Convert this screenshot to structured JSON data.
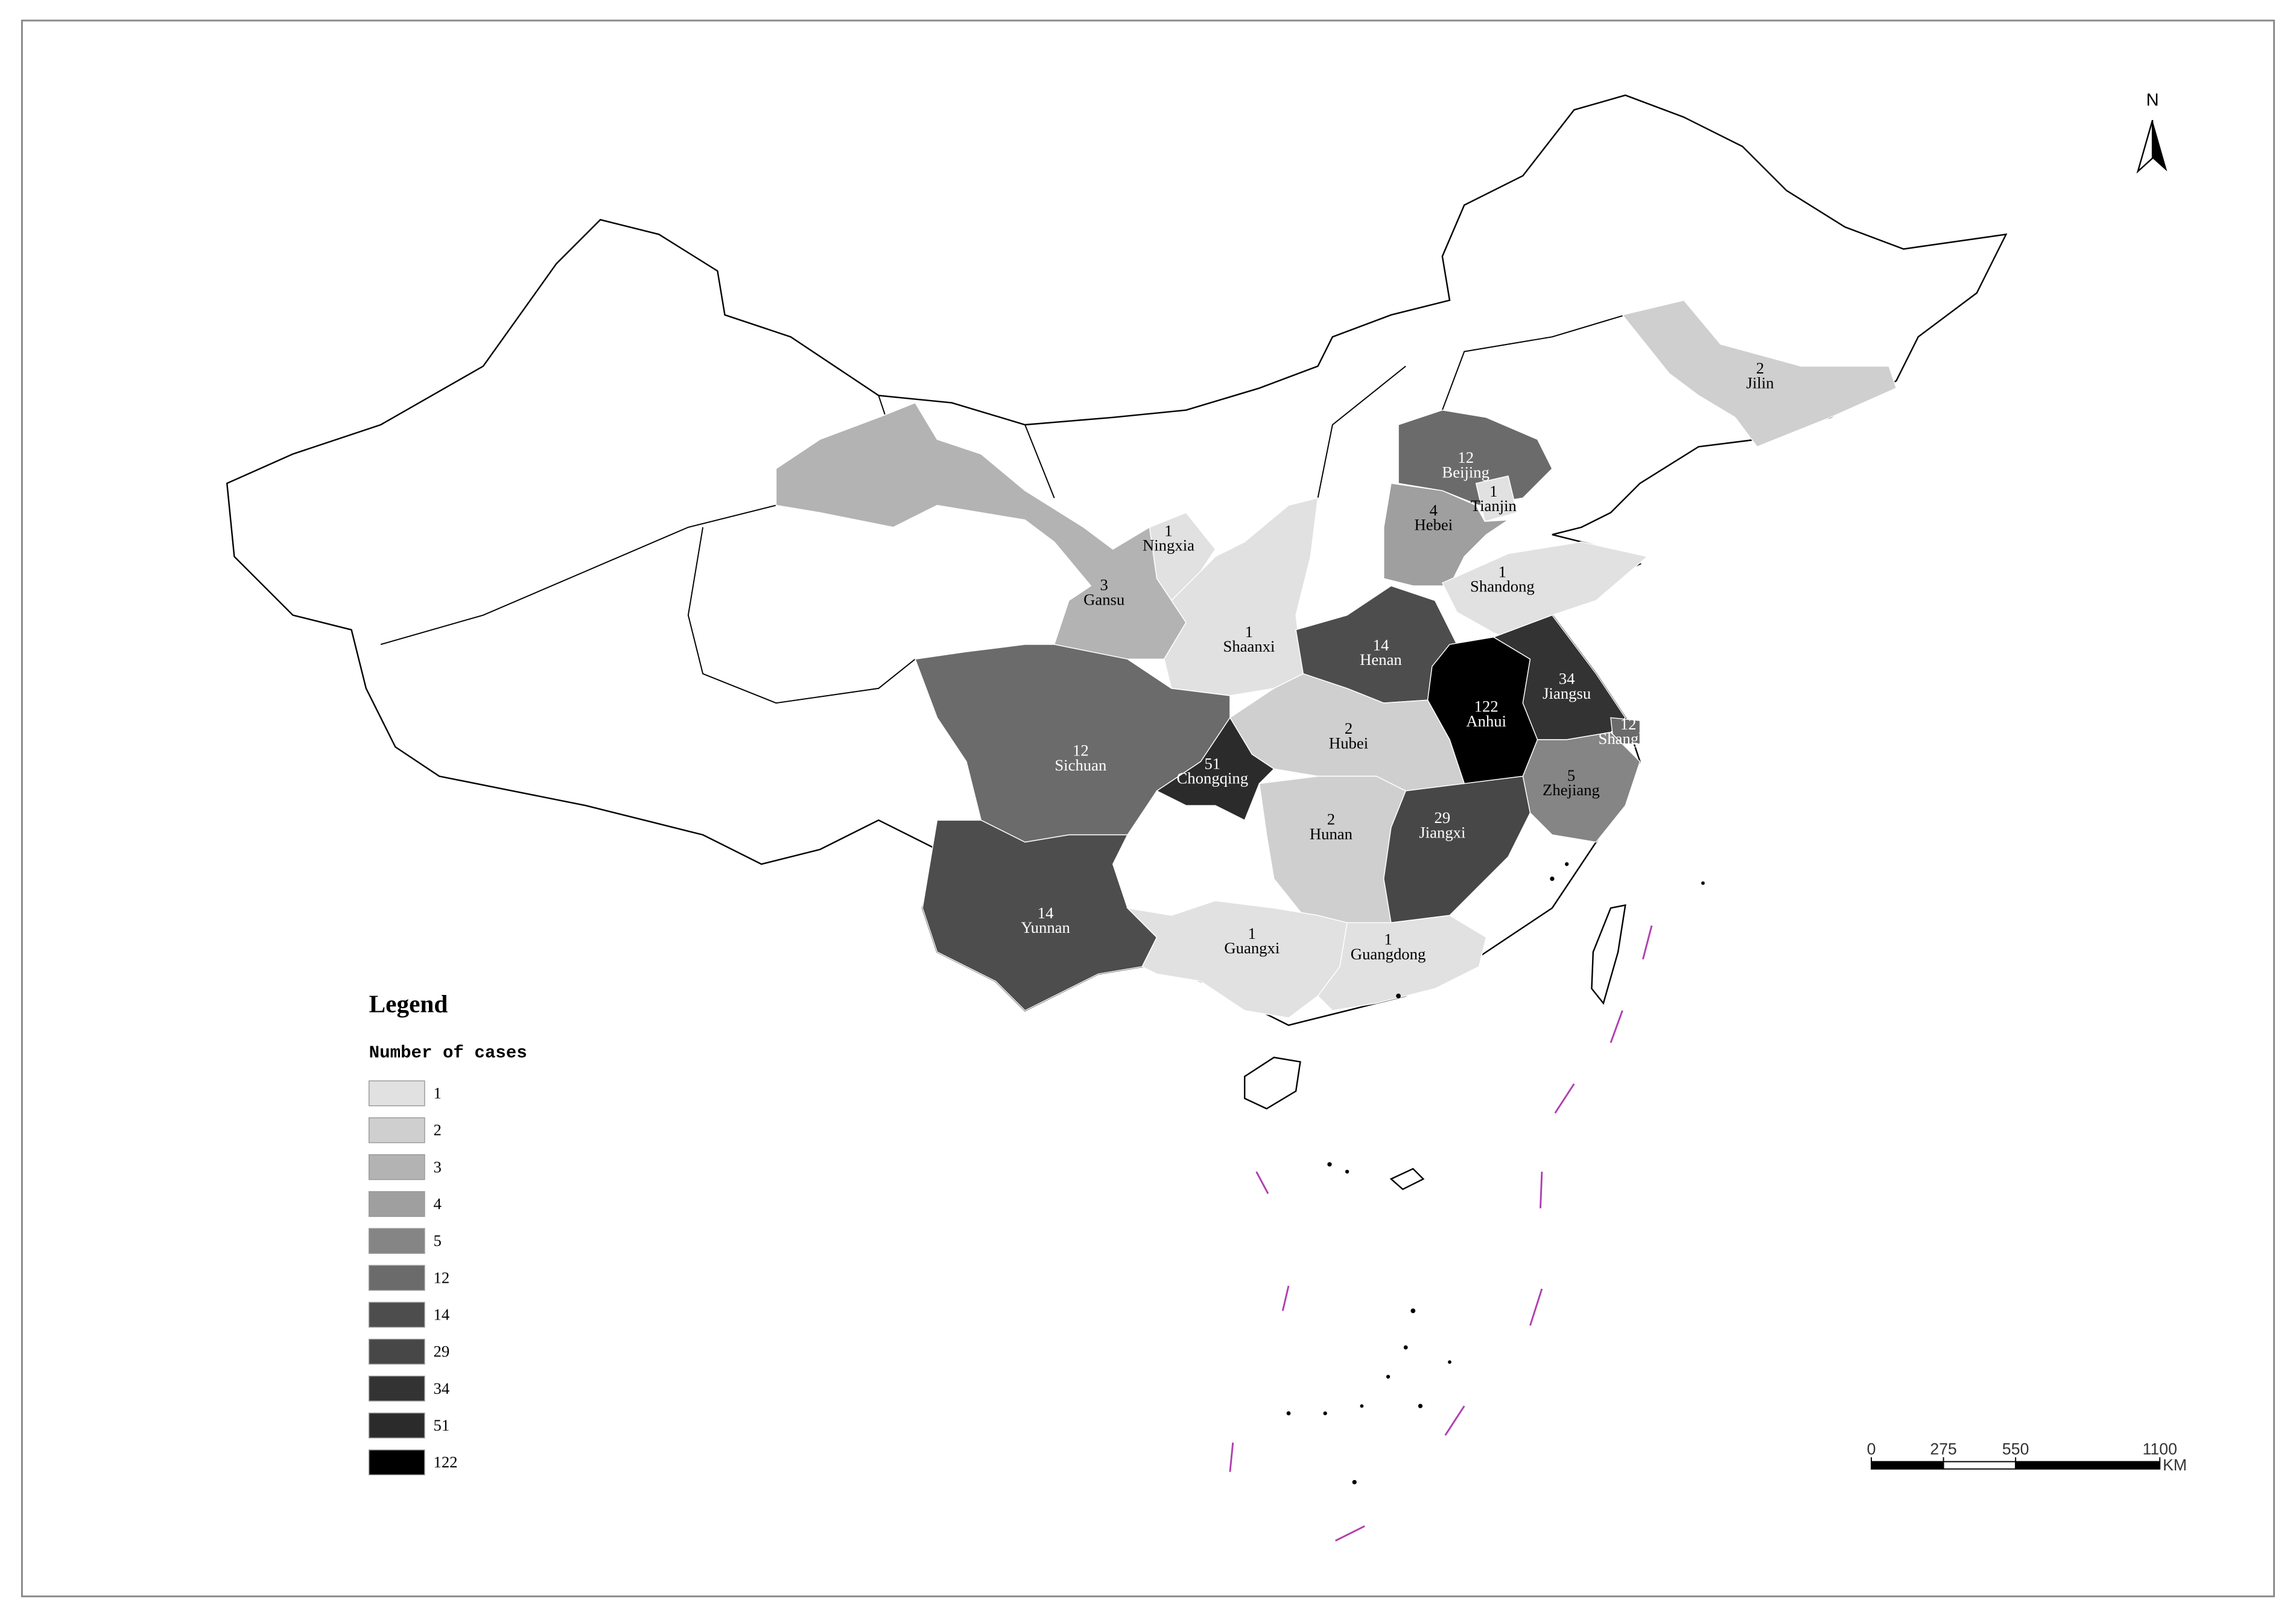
{
  "map": {
    "regions": [
      {
        "name": "Jilin",
        "cases": 2
      },
      {
        "name": "Beijing",
        "cases": 12
      },
      {
        "name": "Tianjin",
        "cases": 1
      },
      {
        "name": "Hebei",
        "cases": 4
      },
      {
        "name": "Shandong",
        "cases": 1
      },
      {
        "name": "Ningxia",
        "cases": 1
      },
      {
        "name": "Gansu",
        "cases": 3
      },
      {
        "name": "Shaanxi",
        "cases": 1
      },
      {
        "name": "Henan",
        "cases": 14
      },
      {
        "name": "Anhui",
        "cases": 122
      },
      {
        "name": "Jiangsu",
        "cases": 34
      },
      {
        "name": "Shanghai",
        "cases": 12
      },
      {
        "name": "Hubei",
        "cases": 2
      },
      {
        "name": "Sichuan",
        "cases": 12
      },
      {
        "name": "Chongqing",
        "cases": 51
      },
      {
        "name": "Zhejiang",
        "cases": 5
      },
      {
        "name": "Hunan",
        "cases": 2
      },
      {
        "name": "Jiangxi",
        "cases": 29
      },
      {
        "name": "Yunnan",
        "cases": 14
      },
      {
        "name": "Guangxi",
        "cases": 1
      },
      {
        "name": "Guangdong",
        "cases": 1
      }
    ],
    "legend": {
      "title": "Legend",
      "subtitle": "Number of cases",
      "classes": [
        {
          "value": 1,
          "color": "#e1e1e1"
        },
        {
          "value": 2,
          "color": "#cfcfcf"
        },
        {
          "value": 3,
          "color": "#b3b3b3"
        },
        {
          "value": 4,
          "color": "#9f9f9f"
        },
        {
          "value": 5,
          "color": "#858585"
        },
        {
          "value": 12,
          "color": "#6b6b6b"
        },
        {
          "value": 14,
          "color": "#4d4d4d"
        },
        {
          "value": 29,
          "color": "#474747"
        },
        {
          "value": 34,
          "color": "#333333"
        },
        {
          "value": 51,
          "color": "#2b2b2b"
        },
        {
          "value": 122,
          "color": "#000000"
        }
      ]
    },
    "scale_bar": {
      "ticks": [
        0,
        275,
        550,
        1100
      ],
      "unit": "KM"
    },
    "north": "N"
  }
}
